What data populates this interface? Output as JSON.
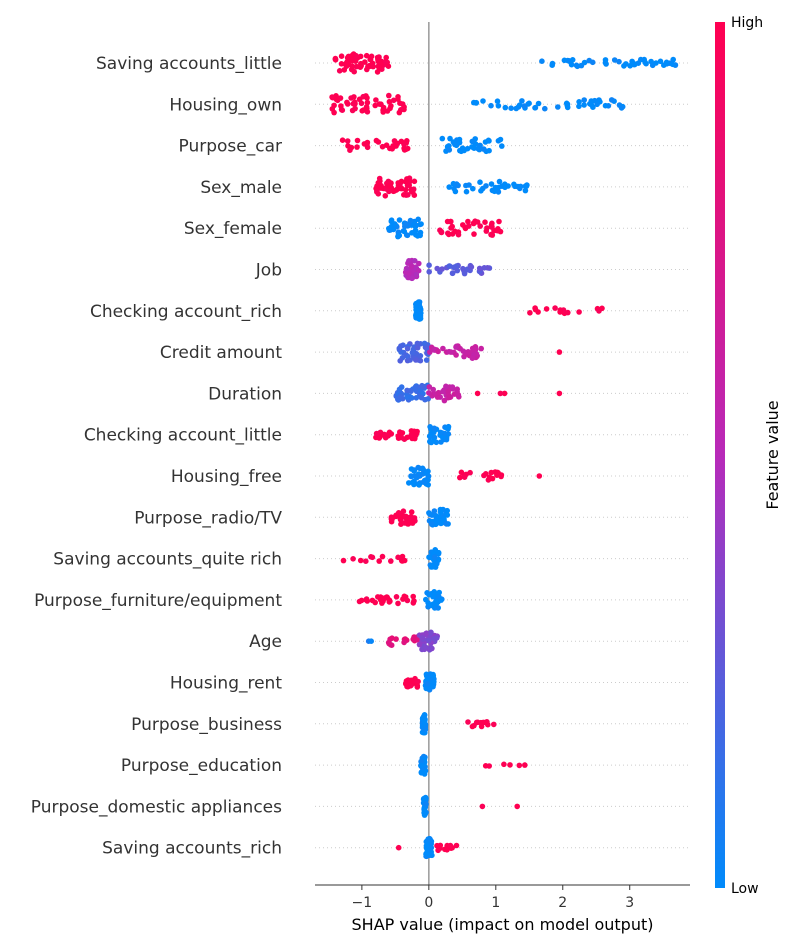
{
  "chart_data": {
    "type": "scatter",
    "subtype": "shap-beeswarm",
    "xlabel": "SHAP value (impact on model output)",
    "xlim": [
      -1.7,
      3.9
    ],
    "xticks": [
      -1,
      0,
      1,
      2,
      3
    ],
    "xtick_labels": [
      "−1",
      "0",
      "1",
      "2",
      "3"
    ],
    "grid": false,
    "colorbar": {
      "label": "Feature value",
      "high_label": "High",
      "low_label": "Low",
      "low_color": "#008bfb",
      "mid_color": "#b82ab9",
      "high_color": "#ff0051"
    },
    "features": [
      {
        "name": "Saving accounts_little",
        "clusters": [
          {
            "from": -1.4,
            "to": -0.6,
            "n": 60,
            "c": 1.0,
            "spread": 1.0
          },
          {
            "from": 1.6,
            "to": 3.7,
            "n": 45,
            "c": 0.0,
            "spread": 0.4
          }
        ]
      },
      {
        "name": "Housing_own",
        "clusters": [
          {
            "from": -1.45,
            "to": -0.35,
            "n": 55,
            "c": 1.0,
            "spread": 1.0
          },
          {
            "from": 0.65,
            "to": 2.9,
            "n": 45,
            "c": 0.0,
            "spread": 0.5
          }
        ]
      },
      {
        "name": "Purpose_car",
        "clusters": [
          {
            "from": -1.3,
            "to": -0.25,
            "n": 30,
            "c": 1.0,
            "spread": 0.6
          },
          {
            "from": 0.2,
            "to": 1.15,
            "n": 35,
            "c": 0.0,
            "spread": 0.8
          }
        ]
      },
      {
        "name": "Sex_male",
        "clusters": [
          {
            "from": -0.8,
            "to": -0.2,
            "n": 50,
            "c": 1.0,
            "spread": 1.0
          },
          {
            "from": 0.3,
            "to": 1.55,
            "n": 35,
            "c": 0.0,
            "spread": 0.6
          }
        ]
      },
      {
        "name": "Sex_female",
        "clusters": [
          {
            "from": -0.6,
            "to": -0.1,
            "n": 45,
            "c": 0.0,
            "spread": 1.0
          },
          {
            "from": 0.15,
            "to": 1.1,
            "n": 40,
            "c": 1.0,
            "spread": 0.8
          }
        ]
      },
      {
        "name": "Job",
        "clusters": [
          {
            "from": -0.35,
            "to": -0.15,
            "n": 40,
            "c": 0.5,
            "spread": 1.0
          },
          {
            "from": 0.0,
            "to": 0.95,
            "n": 30,
            "c": 0.25,
            "spread": 0.5
          }
        ]
      },
      {
        "name": "Checking account_rich",
        "clusters": [
          {
            "from": -0.2,
            "to": -0.12,
            "n": 35,
            "c": 0.0,
            "spread": 1.0
          },
          {
            "from": 1.45,
            "to": 2.75,
            "n": 15,
            "c": 1.0,
            "spread": 0.3
          }
        ]
      },
      {
        "name": "Credit amount",
        "clusters": [
          {
            "from": -0.45,
            "to": 0.0,
            "n": 45,
            "c": 0.2,
            "spread": 1.0
          },
          {
            "from": 0.0,
            "to": 0.8,
            "n": 35,
            "c": 0.6,
            "spread": 0.7
          },
          {
            "from": 1.95,
            "to": 1.95,
            "n": 1,
            "c": 1.0,
            "spread": 0
          }
        ]
      },
      {
        "name": "Duration",
        "clusters": [
          {
            "from": -0.5,
            "to": 0.0,
            "n": 45,
            "c": 0.15,
            "spread": 0.9
          },
          {
            "from": 0.0,
            "to": 0.45,
            "n": 30,
            "c": 0.6,
            "spread": 0.8
          },
          {
            "from": 0.7,
            "to": 1.15,
            "n": 3,
            "c": 1.0,
            "spread": 0
          },
          {
            "from": 1.95,
            "to": 1.95,
            "n": 1,
            "c": 1.0,
            "spread": 0
          }
        ]
      },
      {
        "name": "Checking account_little",
        "clusters": [
          {
            "from": -0.8,
            "to": -0.15,
            "n": 30,
            "c": 1.0,
            "spread": 0.5
          },
          {
            "from": 0.0,
            "to": 0.3,
            "n": 30,
            "c": 0.0,
            "spread": 0.9
          }
        ]
      },
      {
        "name": "Housing_free",
        "clusters": [
          {
            "from": -0.3,
            "to": 0.0,
            "n": 40,
            "c": 0.0,
            "spread": 1.0
          },
          {
            "from": 0.4,
            "to": 1.1,
            "n": 18,
            "c": 1.0,
            "spread": 0.5
          },
          {
            "from": 1.65,
            "to": 1.65,
            "n": 1,
            "c": 1.0,
            "spread": 0
          }
        ]
      },
      {
        "name": "Purpose_radio/TV",
        "clusters": [
          {
            "from": -0.6,
            "to": -0.2,
            "n": 30,
            "c": 1.0,
            "spread": 0.8
          },
          {
            "from": 0.0,
            "to": 0.3,
            "n": 35,
            "c": 0.0,
            "spread": 0.9
          }
        ]
      },
      {
        "name": "Saving accounts_quite rich",
        "clusters": [
          {
            "from": -1.4,
            "to": -0.35,
            "n": 15,
            "c": 1.0,
            "spread": 0.3
          },
          {
            "from": 0.0,
            "to": 0.15,
            "n": 30,
            "c": 0.0,
            "spread": 1.0
          }
        ]
      },
      {
        "name": "Purpose_furniture/equipment",
        "clusters": [
          {
            "from": -1.1,
            "to": -0.1,
            "n": 28,
            "c": 1.0,
            "spread": 0.4
          },
          {
            "from": -0.05,
            "to": 0.2,
            "n": 30,
            "c": 0.0,
            "spread": 1.0
          }
        ]
      },
      {
        "name": "Age",
        "clusters": [
          {
            "from": -0.9,
            "to": -0.85,
            "n": 2,
            "c": 0.05,
            "spread": 0
          },
          {
            "from": -0.6,
            "to": -0.1,
            "n": 20,
            "c": 0.8,
            "spread": 0.5
          },
          {
            "from": -0.15,
            "to": 0.15,
            "n": 40,
            "c": 0.35,
            "spread": 1.0
          }
        ]
      },
      {
        "name": "Housing_rent",
        "clusters": [
          {
            "from": -0.35,
            "to": -0.15,
            "n": 25,
            "c": 1.0,
            "spread": 0.5
          },
          {
            "from": -0.05,
            "to": 0.08,
            "n": 35,
            "c": 0.0,
            "spread": 1.0
          }
        ]
      },
      {
        "name": "Purpose_business",
        "clusters": [
          {
            "from": -0.1,
            "to": -0.05,
            "n": 30,
            "c": 0.0,
            "spread": 1.0
          },
          {
            "from": 0.55,
            "to": 1.0,
            "n": 12,
            "c": 1.0,
            "spread": 0.3
          }
        ]
      },
      {
        "name": "Purpose_education",
        "clusters": [
          {
            "from": -0.12,
            "to": -0.05,
            "n": 30,
            "c": 0.0,
            "spread": 1.0
          },
          {
            "from": 0.7,
            "to": 1.45,
            "n": 6,
            "c": 1.0,
            "spread": 0.1
          }
        ]
      },
      {
        "name": "Purpose_domestic appliances",
        "clusters": [
          {
            "from": -0.08,
            "to": -0.04,
            "n": 30,
            "c": 0.0,
            "spread": 1.0
          },
          {
            "from": 0.8,
            "to": 0.8,
            "n": 1,
            "c": 1.0,
            "spread": 0
          },
          {
            "from": 1.32,
            "to": 1.32,
            "n": 1,
            "c": 1.0,
            "spread": 0
          }
        ]
      },
      {
        "name": "Saving accounts_rich",
        "clusters": [
          {
            "from": -0.05,
            "to": 0.05,
            "n": 40,
            "c": 0.0,
            "spread": 1.0
          },
          {
            "from": -0.45,
            "to": -0.45,
            "n": 1,
            "c": 1.0,
            "spread": 0
          },
          {
            "from": 0.1,
            "to": 0.45,
            "n": 12,
            "c": 1.0,
            "spread": 0.3
          }
        ]
      }
    ]
  }
}
